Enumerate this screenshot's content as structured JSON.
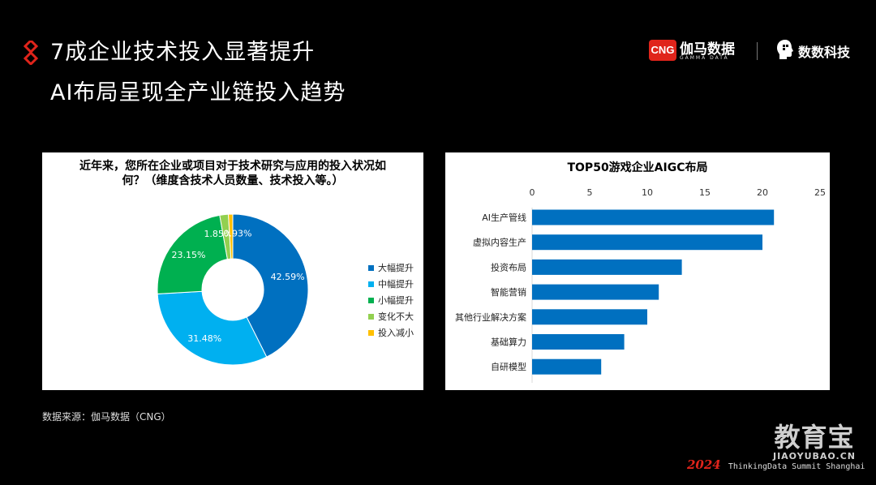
{
  "header": {
    "title_line1": "7成企业技术投入显著提升",
    "title_line2": "AI布局呈现全产业链投入趋势",
    "accent_color": "#e0241b"
  },
  "logos": {
    "cng_badge": "CNG",
    "cng_name": "伽马数据",
    "cng_sub": "GAMMA DATA",
    "partner_name": "数数科技"
  },
  "chart_data": [
    {
      "type": "pie",
      "variant": "donut",
      "title": "近年来，您所在企业或项目对于技术研究与应用的投入状况如何？（维度含技术人员数量、技术投入等。）",
      "categories": [
        "大幅提升",
        "中幅提升",
        "小幅提升",
        "变化不大",
        "投入减小"
      ],
      "values": [
        42.59,
        31.48,
        23.15,
        1.85,
        0.93
      ],
      "labels": [
        "42.59%",
        "31.48%",
        "23.15%",
        "1.85%",
        "0.93%"
      ],
      "colors": [
        "#0070c0",
        "#00b0f0",
        "#00b050",
        "#92d050",
        "#ffc000"
      ],
      "legend": "right"
    },
    {
      "type": "bar",
      "orientation": "horizontal",
      "title": "TOP50游戏企业AIGC布局",
      "categories": [
        "AI生产管线",
        "虚拟内容生产",
        "投资布局",
        "智能营销",
        "其他行业解决方案",
        "基础算力",
        "自研模型"
      ],
      "values": [
        21,
        20,
        13,
        11,
        10,
        8,
        6
      ],
      "xlim": [
        0,
        25
      ],
      "xticks": [
        "0",
        "5",
        "10",
        "15",
        "20",
        "25"
      ],
      "xaxis_position": "top",
      "color": "#0070c0",
      "grid": false
    }
  ],
  "source": "数据来源：伽马数据（CNG）",
  "watermark": {
    "big": "教育宝",
    "small": "JIAOYUBAO.CN"
  },
  "footer": {
    "year": "2024",
    "text": "ThinkingData Summit Shanghai"
  }
}
